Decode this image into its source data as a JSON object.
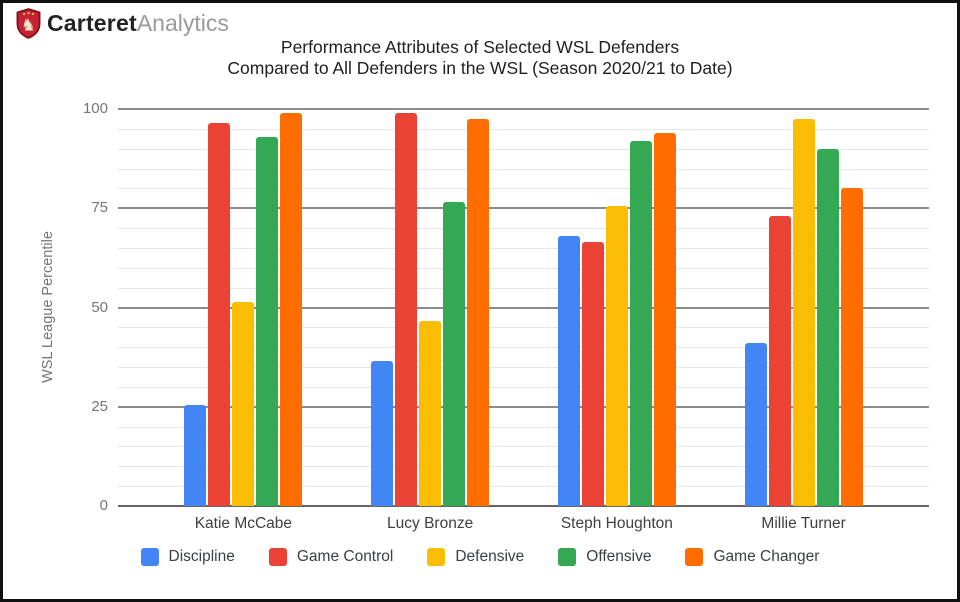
{
  "logo": {
    "brand_bold": "Carteret",
    "brand_light": "Analytics",
    "shield_color": "#C62232",
    "shield_border_color": "#7E1020",
    "lion_color": "#F3E9CF"
  },
  "chart_data": {
    "type": "bar",
    "title_line1": "Performance Attributes of Selected WSL Defenders",
    "title_line2": "Compared to All Defenders in the WSL (Season 2020/21 to Date)",
    "ylabel": "WSL League Percentile",
    "categories": [
      "Katie McCabe",
      "Lucy Bronze",
      "Steph Houghton",
      "Millie Turner"
    ],
    "series": [
      {
        "name": "Discipline",
        "color": "#4285F4",
        "values": [
          25.5,
          36.5,
          68.0,
          41.0
        ]
      },
      {
        "name": "Game Control",
        "color": "#EA4335",
        "values": [
          96.5,
          99.0,
          66.5,
          73.0
        ]
      },
      {
        "name": "Defensive",
        "color": "#FBBC04",
        "values": [
          51.5,
          46.5,
          75.5,
          97.5
        ]
      },
      {
        "name": "Offensive",
        "color": "#34A853",
        "values": [
          93.0,
          76.5,
          92.0,
          90.0
        ]
      },
      {
        "name": "Game Changer",
        "color": "#FF6D01",
        "values": [
          99.0,
          97.5,
          94.0,
          80.0
        ]
      }
    ],
    "ylim": [
      0,
      100
    ],
    "yticks": [
      0,
      25,
      50,
      75,
      100
    ],
    "minor_step": 5,
    "grid": true,
    "legend_position": "bottom"
  }
}
